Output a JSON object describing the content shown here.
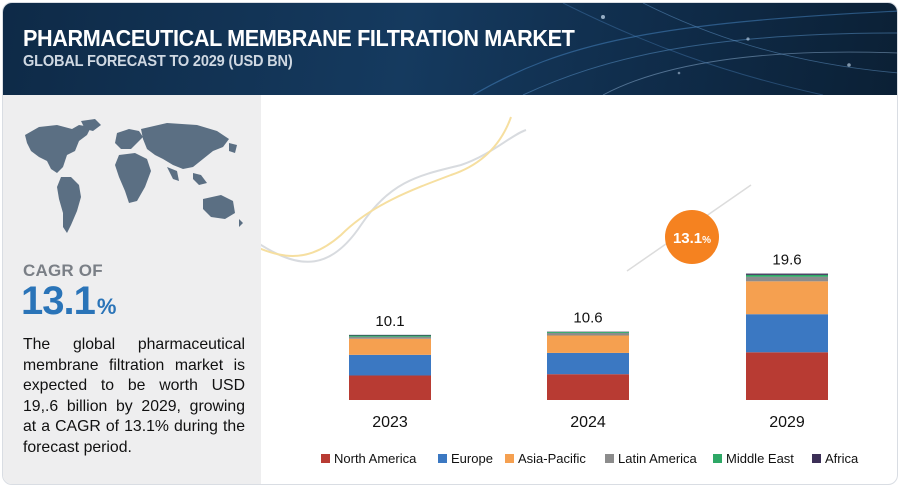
{
  "header": {
    "title": "PHARMACEUTICAL MEMBRANE FILTRATION MARKET",
    "subtitle": "GLOBAL FORECAST TO 2029 (USD BN)"
  },
  "left_panel": {
    "map_icon": "world-map-icon",
    "cagr_label": "CAGR OF",
    "cagr_value": "13.1",
    "cagr_unit": "%",
    "summary": "The global pharmaceutical membrane filtration market is expected to be worth USD 19,.6 billion by 2029, growing at a CAGR of 13.1% during the forecast period."
  },
  "chart_data": {
    "type": "bar",
    "stacked": true,
    "categories": [
      "2023",
      "2024",
      "2029"
    ],
    "totals": [
      10.1,
      10.6,
      19.6
    ],
    "total_labels": [
      "10.1",
      "10.6",
      "19.6"
    ],
    "series": [
      {
        "name": "North America",
        "color": "#b83b33",
        "values": [
          3.8,
          4.0,
          7.4
        ]
      },
      {
        "name": "Europe",
        "color": "#3b78c2",
        "values": [
          3.2,
          3.3,
          5.9
        ]
      },
      {
        "name": "Asia-Pacific",
        "color": "#f5a050",
        "values": [
          2.5,
          2.7,
          5.1
        ]
      },
      {
        "name": "Latin America",
        "color": "#8c8c8c",
        "values": [
          0.3,
          0.4,
          0.7
        ]
      },
      {
        "name": "Middle East",
        "color": "#2ea866",
        "values": [
          0.2,
          0.15,
          0.3
        ]
      },
      {
        "name": "Africa",
        "color": "#3c2f57",
        "values": [
          0.1,
          0.05,
          0.2
        ]
      }
    ],
    "ylim": [
      0,
      20
    ],
    "grid": false,
    "legend": "bottom",
    "annotation": {
      "text": "13.1",
      "unit": "%",
      "color": "#f58220"
    }
  }
}
